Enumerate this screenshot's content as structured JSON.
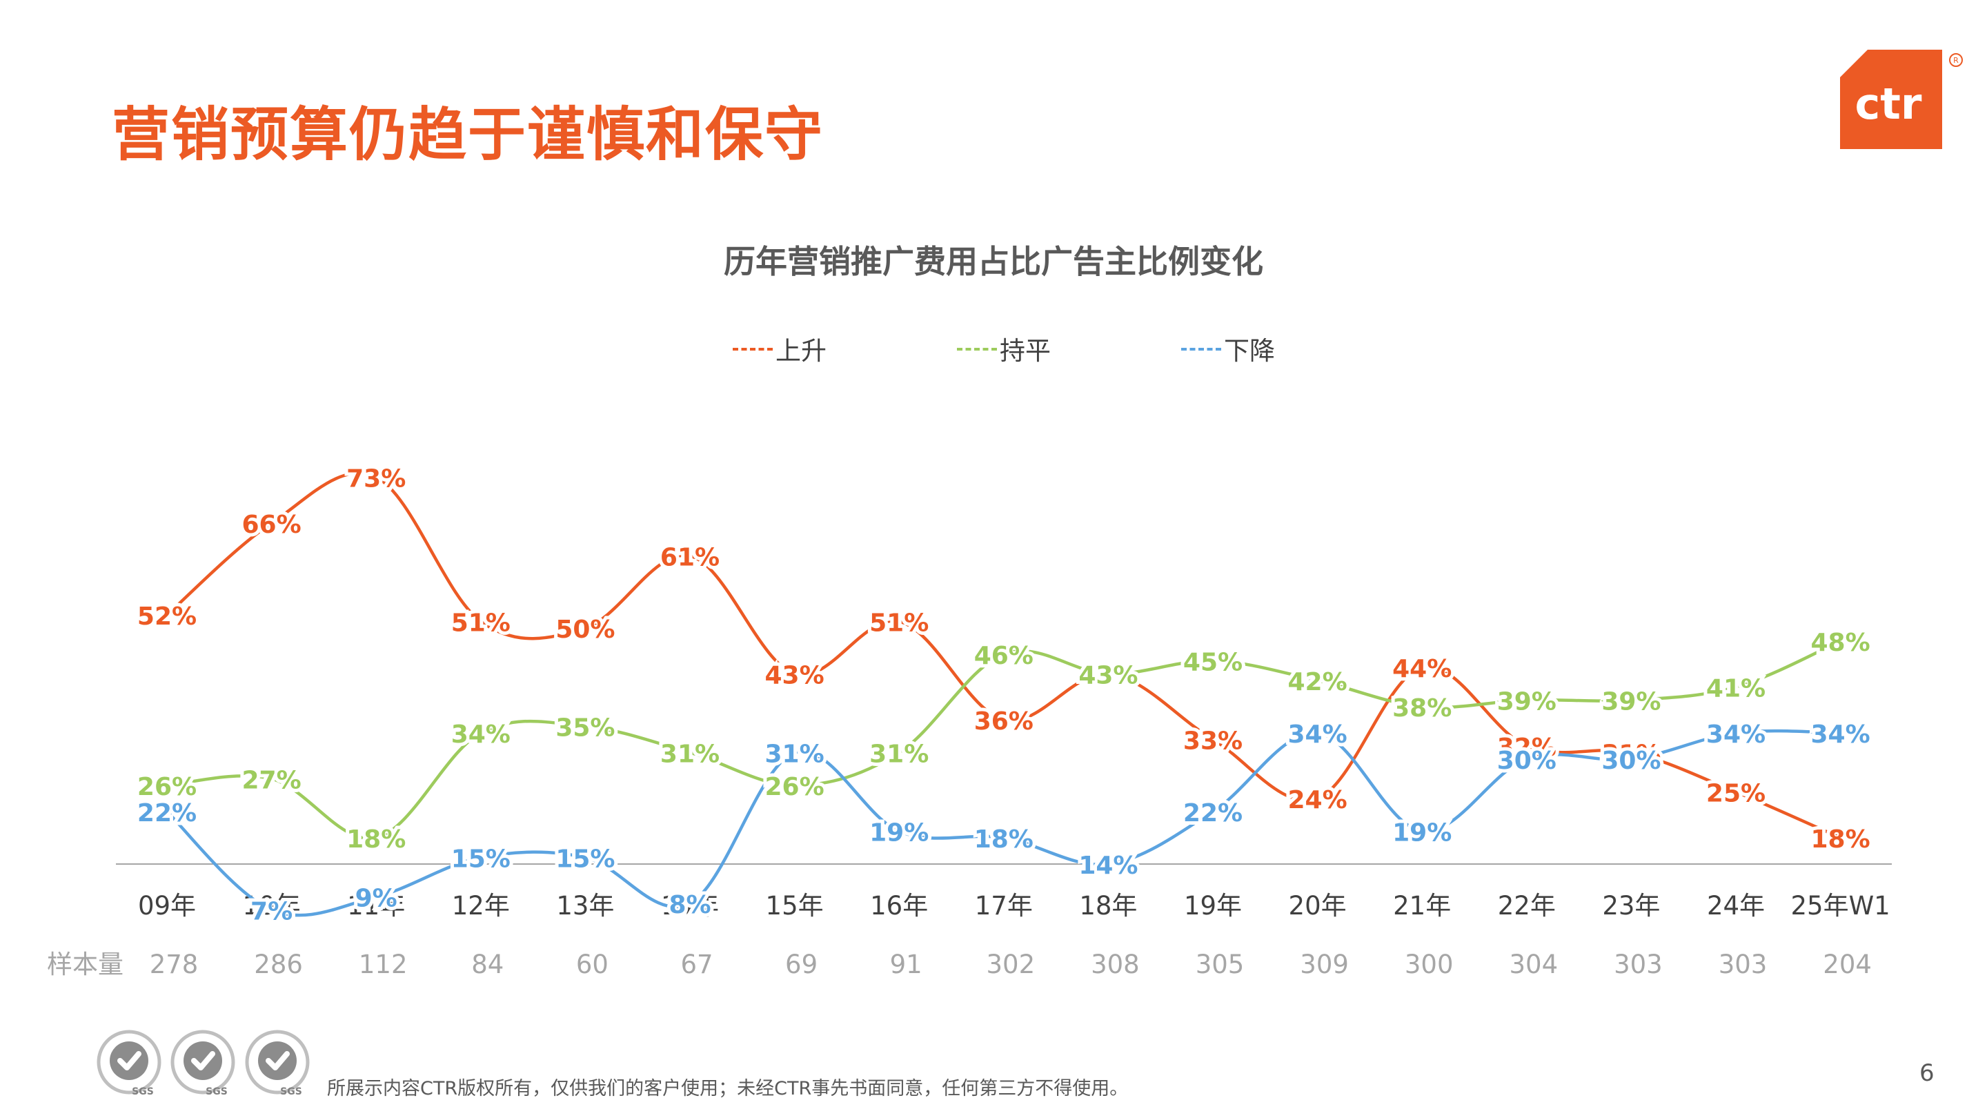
{
  "page": {
    "title": "营销预算仍趋于谨慎和保守",
    "footer": "所展示内容CTR版权所有，仅供我们的客户使用；未经CTR事先书面同意，任何第三方不得使用。",
    "page_number": "6",
    "logo_text": "ctr",
    "badges": [
      {
        "name": "iso-cert-badge-1",
        "text": "SGS",
        "icon": "check-seal-icon"
      },
      {
        "name": "iso-cert-badge-2",
        "text": "SGS",
        "icon": "check-seal-icon"
      },
      {
        "name": "iso-cert-badge-3",
        "text": "SGS",
        "icon": "check-seal-icon"
      }
    ]
  },
  "chart_data": {
    "type": "line",
    "title": "历年营销推广费用占比广告主比例变化",
    "categories": [
      "09年",
      "10年",
      "11年",
      "12年",
      "13年",
      "14年",
      "15年",
      "16年",
      "17年",
      "18年",
      "19年",
      "20年",
      "21年",
      "22年",
      "23年",
      "24年",
      "25年W1"
    ],
    "sample_label": "样本量",
    "sample_sizes": [
      "278",
      "286",
      "112",
      "84",
      "60",
      "67",
      "69",
      "91",
      "302",
      "308",
      "305",
      "309",
      "300",
      "304",
      "303",
      "303",
      "204"
    ],
    "series": [
      {
        "name": "上升",
        "color": "#EC5A24",
        "values": [
          52,
          66,
          73,
          51,
          50,
          61,
          43,
          51,
          36,
          43,
          33,
          24,
          44,
          32,
          31,
          25,
          18
        ]
      },
      {
        "name": "持平",
        "color": "#9DCB5D",
        "values": [
          26,
          27,
          18,
          34,
          35,
          31,
          26,
          31,
          46,
          43,
          45,
          42,
          38,
          39,
          39,
          41,
          48
        ]
      },
      {
        "name": "下降",
        "color": "#5BA3E0",
        "values": [
          22,
          7,
          9,
          15,
          15,
          8,
          31,
          19,
          18,
          14,
          22,
          34,
          19,
          30,
          30,
          34,
          34
        ]
      }
    ],
    "value_suffix": "%",
    "legend_position": "top",
    "grid": false,
    "ylim": [
      0,
      80
    ],
    "smooth": true
  }
}
